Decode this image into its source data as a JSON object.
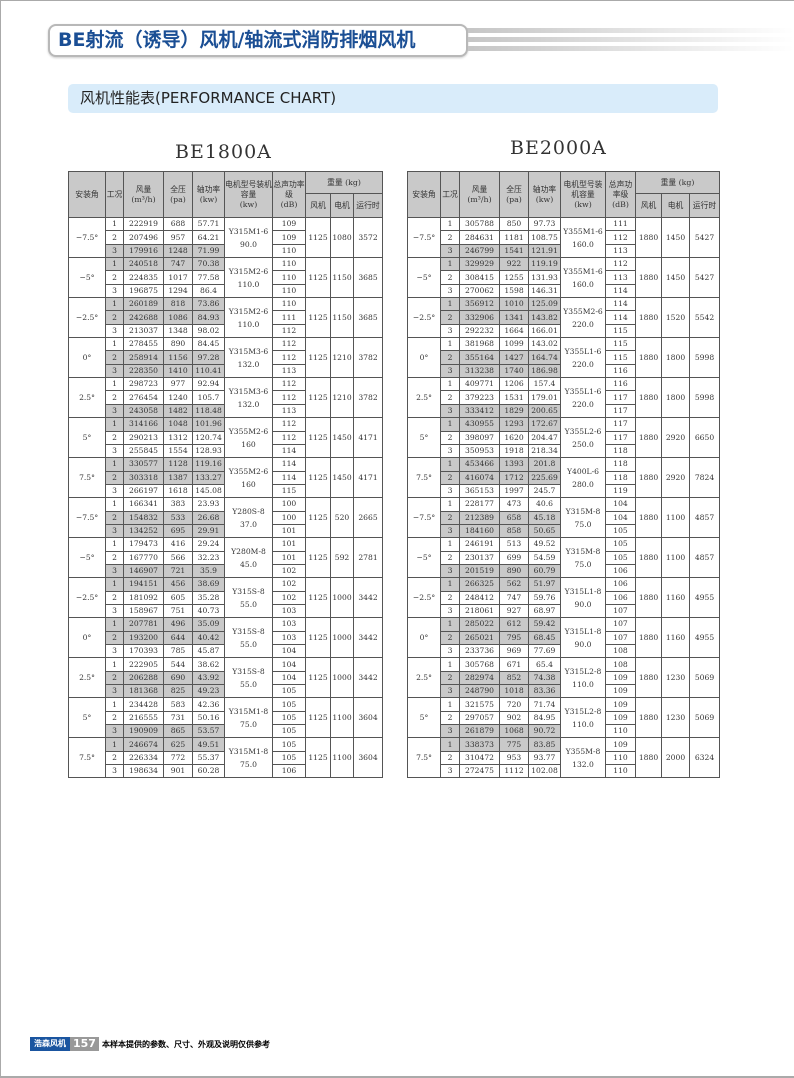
{
  "header": {
    "title": "BE射流（诱导）风机/轴流式消防排烟风机",
    "subtitle": "风机性能表(PERFORMANCE CHART)"
  },
  "columns": {
    "angle": "安装角",
    "cond": "工况",
    "flow": "风量",
    "flow_unit": "(m³/h)",
    "pressure": "全压",
    "pressure_unit": "(pa)",
    "power": "轴功率",
    "power_unit": "(kw)",
    "motor": "电机型号装机容量",
    "motor_unit": "(kw)",
    "noise": "总声功率级",
    "noise_unit": "(dB)",
    "weight": "重量 (kg)",
    "w_fan": "风机",
    "w_motor": "电机",
    "w_run": "运行时"
  },
  "tables": [
    {
      "model": "BE1800A",
      "groups": [
        {
          "angle": "−7.5°",
          "motor": "Y315M1-6",
          "cap": "90.0",
          "w": [
            "1125",
            "1080",
            "3572"
          ],
          "rows": [
            [
              "1",
              "222919",
              "688",
              "57.71",
              "109",
              0
            ],
            [
              "2",
              "207496",
              "957",
              "64.21",
              "109",
              0
            ],
            [
              "3",
              "179916",
              "1248",
              "71.99",
              "110",
              1
            ]
          ]
        },
        {
          "angle": "−5°",
          "motor": "Y315M2-6",
          "cap": "110.0",
          "w": [
            "1125",
            "1150",
            "3685"
          ],
          "rows": [
            [
              "1",
              "240518",
              "747",
              "70.38",
              "110",
              1
            ],
            [
              "2",
              "224835",
              "1017",
              "77.58",
              "110",
              0
            ],
            [
              "3",
              "196875",
              "1294",
              "86.4",
              "110",
              0
            ]
          ]
        },
        {
          "angle": "−2.5°",
          "motor": "Y315M2-6",
          "cap": "110.0",
          "w": [
            "1125",
            "1150",
            "3685"
          ],
          "rows": [
            [
              "1",
              "260189",
              "818",
              "73.86",
              "110",
              1
            ],
            [
              "2",
              "242688",
              "1086",
              "84.93",
              "111",
              1
            ],
            [
              "3",
              "213037",
              "1348",
              "98.02",
              "112",
              0
            ]
          ]
        },
        {
          "angle": "0°",
          "motor": "Y315M3-6",
          "cap": "132.0",
          "w": [
            "1125",
            "1210",
            "3782"
          ],
          "rows": [
            [
              "1",
              "278455",
              "890",
              "84.45",
              "112",
              0
            ],
            [
              "2",
              "258914",
              "1156",
              "97.28",
              "112",
              1
            ],
            [
              "3",
              "228350",
              "1410",
              "110.41",
              "113",
              1
            ]
          ]
        },
        {
          "angle": "2.5°",
          "motor": "Y315M3-6",
          "cap": "132.0",
          "w": [
            "1125",
            "1210",
            "3782"
          ],
          "rows": [
            [
              "1",
              "298723",
              "977",
              "92.94",
              "112",
              0
            ],
            [
              "2",
              "276454",
              "1240",
              "105.7",
              "112",
              0
            ],
            [
              "3",
              "243058",
              "1482",
              "118.48",
              "113",
              1
            ]
          ]
        },
        {
          "angle": "5°",
          "motor": "Y355M2-6",
          "cap": "160",
          "w": [
            "1125",
            "1450",
            "4171"
          ],
          "rows": [
            [
              "1",
              "314166",
              "1048",
              "101.96",
              "112",
              1
            ],
            [
              "2",
              "290213",
              "1312",
              "120.74",
              "112",
              0
            ],
            [
              "3",
              "255845",
              "1554",
              "128.93",
              "114",
              0
            ]
          ]
        },
        {
          "angle": "7.5°",
          "motor": "Y355M2-6",
          "cap": "160",
          "w": [
            "1125",
            "1450",
            "4171"
          ],
          "rows": [
            [
              "1",
              "330577",
              "1128",
              "119.16",
              "114",
              1
            ],
            [
              "2",
              "303318",
              "1387",
              "133.27",
              "114",
              1
            ],
            [
              "3",
              "266197",
              "1618",
              "145.08",
              "115",
              0
            ]
          ]
        },
        {
          "angle": "−7.5°",
          "motor": "Y280S-8",
          "cap": "37.0",
          "w": [
            "1125",
            "520",
            "2665"
          ],
          "rows": [
            [
              "1",
              "166341",
              "383",
              "23.93",
              "100",
              0
            ],
            [
              "2",
              "154832",
              "533",
              "26.68",
              "100",
              1
            ],
            [
              "3",
              "134252",
              "695",
              "29.91",
              "101",
              1
            ]
          ]
        },
        {
          "angle": "−5°",
          "motor": "Y280M-8",
          "cap": "45.0",
          "w": [
            "1125",
            "592",
            "2781"
          ],
          "rows": [
            [
              "1",
              "179473",
              "416",
              "29.24",
              "101",
              0
            ],
            [
              "2",
              "167770",
              "566",
              "32.23",
              "101",
              0
            ],
            [
              "3",
              "146907",
              "721",
              "35.9",
              "102",
              1
            ]
          ]
        },
        {
          "angle": "−2.5°",
          "motor": "Y315S-8",
          "cap": "55.0",
          "w": [
            "1125",
            "1000",
            "3442"
          ],
          "rows": [
            [
              "1",
              "194151",
              "456",
              "38.69",
              "102",
              1
            ],
            [
              "2",
              "181092",
              "605",
              "35.28",
              "102",
              0
            ],
            [
              "3",
              "158967",
              "751",
              "40.73",
              "103",
              0
            ]
          ]
        },
        {
          "angle": "0°",
          "motor": "Y315S-8",
          "cap": "55.0",
          "w": [
            "1125",
            "1000",
            "3442"
          ],
          "rows": [
            [
              "1",
              "207781",
              "496",
              "35.09",
              "103",
              1
            ],
            [
              "2",
              "193200",
              "644",
              "40.42",
              "103",
              1
            ],
            [
              "3",
              "170393",
              "785",
              "45.87",
              "104",
              0
            ]
          ]
        },
        {
          "angle": "2.5°",
          "motor": "Y315S-8",
          "cap": "55.0",
          "w": [
            "1125",
            "1000",
            "3442"
          ],
          "rows": [
            [
              "1",
              "222905",
              "544",
              "38.62",
              "104",
              0
            ],
            [
              "2",
              "206288",
              "690",
              "43.92",
              "104",
              1
            ],
            [
              "3",
              "181368",
              "825",
              "49.23",
              "105",
              1
            ]
          ]
        },
        {
          "angle": "5°",
          "motor": "Y315M1-8",
          "cap": "75.0",
          "w": [
            "1125",
            "1100",
            "3604"
          ],
          "rows": [
            [
              "1",
              "234428",
              "583",
              "42.36",
              "105",
              0
            ],
            [
              "2",
              "216555",
              "731",
              "50.16",
              "105",
              0
            ],
            [
              "3",
              "190909",
              "865",
              "53.57",
              "105",
              1
            ]
          ]
        },
        {
          "angle": "7.5°",
          "motor": "Y315M1-8",
          "cap": "75.0",
          "w": [
            "1125",
            "1100",
            "3604"
          ],
          "rows": [
            [
              "1",
              "246674",
              "625",
              "49.51",
              "105",
              1
            ],
            [
              "2",
              "226334",
              "772",
              "55.37",
              "105",
              0
            ],
            [
              "3",
              "198634",
              "901",
              "60.28",
              "106",
              0
            ]
          ]
        }
      ]
    },
    {
      "model": "BE2000A",
      "groups": [
        {
          "angle": "−7.5°",
          "motor": "Y355M1-6",
          "cap": "160.0",
          "w": [
            "1880",
            "1450",
            "5427"
          ],
          "rows": [
            [
              "1",
              "305788",
              "850",
              "97.73",
              "111",
              0
            ],
            [
              "2",
              "284631",
              "1181",
              "108.75",
              "112",
              0
            ],
            [
              "3",
              "246799",
              "1541",
              "121.91",
              "113",
              1
            ]
          ]
        },
        {
          "angle": "−5°",
          "motor": "Y355M1-6",
          "cap": "160.0",
          "w": [
            "1880",
            "1450",
            "5427"
          ],
          "rows": [
            [
              "1",
              "329929",
              "922",
              "119.19",
              "112",
              1
            ],
            [
              "2",
              "308415",
              "1255",
              "131.93",
              "113",
              0
            ],
            [
              "3",
              "270062",
              "1598",
              "146.31",
              "114",
              0
            ]
          ]
        },
        {
          "angle": "−2.5°",
          "motor": "Y355M2-6",
          "cap": "220.0",
          "w": [
            "1880",
            "1520",
            "5542"
          ],
          "rows": [
            [
              "1",
              "356912",
              "1010",
              "125.09",
              "114",
              1
            ],
            [
              "2",
              "332906",
              "1341",
              "143.82",
              "114",
              1
            ],
            [
              "3",
              "292232",
              "1664",
              "166.01",
              "115",
              0
            ]
          ]
        },
        {
          "angle": "0°",
          "motor": "Y355L1-6",
          "cap": "220.0",
          "w": [
            "1880",
            "1800",
            "5998"
          ],
          "rows": [
            [
              "1",
              "381968",
              "1099",
              "143.02",
              "115",
              0
            ],
            [
              "2",
              "355164",
              "1427",
              "164.74",
              "115",
              1
            ],
            [
              "3",
              "313238",
              "1740",
              "186.98",
              "116",
              1
            ]
          ]
        },
        {
          "angle": "2.5°",
          "motor": "Y355L1-6",
          "cap": "220.0",
          "w": [
            "1880",
            "1800",
            "5998"
          ],
          "rows": [
            [
              "1",
              "409771",
              "1206",
              "157.4",
              "116",
              0
            ],
            [
              "2",
              "379223",
              "1531",
              "179.01",
              "117",
              0
            ],
            [
              "3",
              "333412",
              "1829",
              "200.65",
              "117",
              1
            ]
          ]
        },
        {
          "angle": "5°",
          "motor": "Y355L2-6",
          "cap": "250.0",
          "w": [
            "1880",
            "2920",
            "6650"
          ],
          "rows": [
            [
              "1",
              "430955",
              "1293",
              "172.67",
              "117",
              1
            ],
            [
              "2",
              "398097",
              "1620",
              "204.47",
              "117",
              0
            ],
            [
              "3",
              "350953",
              "1918",
              "218.34",
              "118",
              0
            ]
          ]
        },
        {
          "angle": "7.5°",
          "motor": "Y400L-6",
          "cap": "280.0",
          "w": [
            "1880",
            "2920",
            "7824"
          ],
          "rows": [
            [
              "1",
              "453466",
              "1393",
              "201.8",
              "118",
              1
            ],
            [
              "2",
              "416074",
              "1712",
              "225.69",
              "118",
              1
            ],
            [
              "3",
              "365153",
              "1997",
              "245.7",
              "119",
              0
            ]
          ]
        },
        {
          "angle": "−7.5°",
          "motor": "Y315M-8",
          "cap": "75.0",
          "w": [
            "1880",
            "1100",
            "4857"
          ],
          "rows": [
            [
              "1",
              "228177",
              "473",
              "40.6",
              "104",
              0
            ],
            [
              "2",
              "212389",
              "658",
              "45.18",
              "104",
              1
            ],
            [
              "3",
              "184160",
              "858",
              "50.65",
              "105",
              1
            ]
          ]
        },
        {
          "angle": "−5°",
          "motor": "Y315M-8",
          "cap": "75.0",
          "w": [
            "1880",
            "1100",
            "4857"
          ],
          "rows": [
            [
              "1",
              "246191",
              "513",
              "49.52",
              "105",
              0
            ],
            [
              "2",
              "230137",
              "699",
              "54.59",
              "105",
              0
            ],
            [
              "3",
              "201519",
              "890",
              "60.79",
              "106",
              1
            ]
          ]
        },
        {
          "angle": "−2.5°",
          "motor": "Y315L1-8",
          "cap": "90.0",
          "w": [
            "1880",
            "1160",
            "4955"
          ],
          "rows": [
            [
              "1",
              "266325",
              "562",
              "51.97",
              "106",
              1
            ],
            [
              "2",
              "248412",
              "747",
              "59.76",
              "106",
              0
            ],
            [
              "3",
              "218061",
              "927",
              "68.97",
              "107",
              0
            ]
          ]
        },
        {
          "angle": "0°",
          "motor": "Y315L1-8",
          "cap": "90.0",
          "w": [
            "1880",
            "1160",
            "4955"
          ],
          "rows": [
            [
              "1",
              "285022",
              "612",
              "59.42",
              "107",
              1
            ],
            [
              "2",
              "265021",
              "795",
              "68.45",
              "107",
              1
            ],
            [
              "3",
              "233736",
              "969",
              "77.69",
              "108",
              0
            ]
          ]
        },
        {
          "angle": "2.5°",
          "motor": "Y315L2-8",
          "cap": "110.0",
          "w": [
            "1880",
            "1230",
            "5069"
          ],
          "rows": [
            [
              "1",
              "305768",
              "671",
              "65.4",
              "108",
              0
            ],
            [
              "2",
              "282974",
              "852",
              "74.38",
              "109",
              1
            ],
            [
              "3",
              "248790",
              "1018",
              "83.36",
              "109",
              1
            ]
          ]
        },
        {
          "angle": "5°",
          "motor": "Y315L2-8",
          "cap": "110.0",
          "w": [
            "1880",
            "1230",
            "5069"
          ],
          "rows": [
            [
              "1",
              "321575",
              "720",
              "71.74",
              "109",
              0
            ],
            [
              "2",
              "297057",
              "902",
              "84.95",
              "109",
              0
            ],
            [
              "3",
              "261879",
              "1068",
              "90.72",
              "110",
              1
            ]
          ]
        },
        {
          "angle": "7.5°",
          "motor": "Y355M-8",
          "cap": "132.0",
          "w": [
            "1880",
            "2000",
            "6324"
          ],
          "rows": [
            [
              "1",
              "338373",
              "775",
              "83.85",
              "109",
              1
            ],
            [
              "2",
              "310472",
              "953",
              "93.77",
              "110",
              0
            ],
            [
              "3",
              "272475",
              "1112",
              "102.08",
              "110",
              0
            ]
          ]
        }
      ]
    }
  ],
  "footer": {
    "brand": "浩森风机",
    "page": "157",
    "note": "本样本提供的参数、尺寸、外观及说明仅供参考"
  }
}
